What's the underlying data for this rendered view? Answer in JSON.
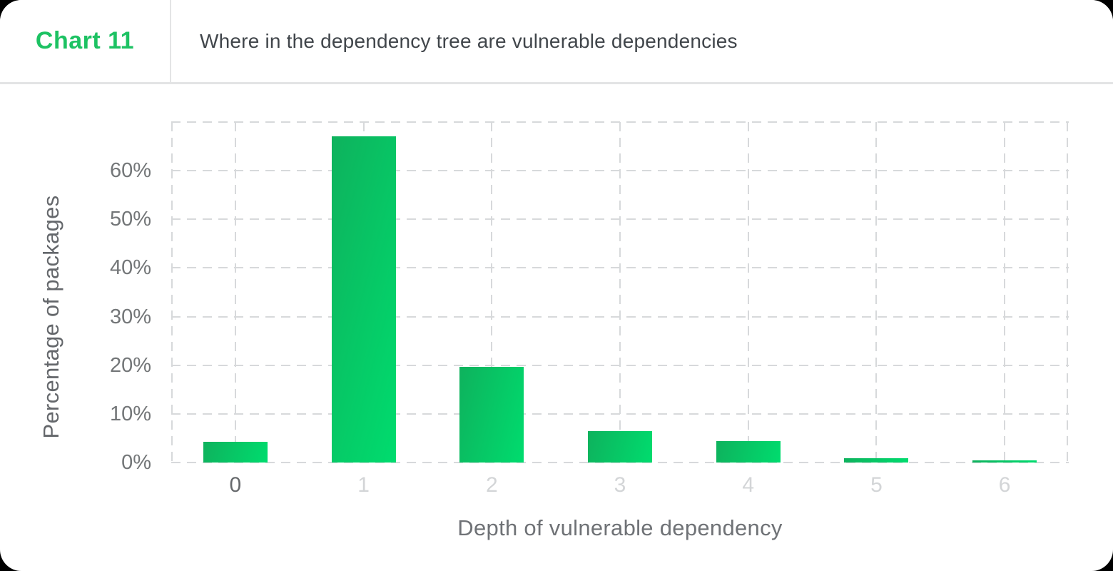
{
  "page": {
    "background_color": "#000000",
    "card_background_color": "#ffffff"
  },
  "header": {
    "chart_label": "Chart 11",
    "chart_label_color": "#1dc263",
    "title": "Where in the dependency tree are vulnerable dependencies",
    "title_color": "#41464b"
  },
  "chart_data": {
    "type": "bar",
    "title": "Where in the dependency tree are vulnerable dependencies",
    "categories": [
      "0",
      "1",
      "2",
      "3",
      "4",
      "5",
      "6"
    ],
    "values": [
      4.2,
      67,
      19.6,
      6.5,
      4.4,
      0.9,
      0.5
    ],
    "xlabel": "Depth of vulnerable dependency",
    "ylabel": "Percentage of packages",
    "ylim": [
      0,
      70
    ],
    "ytick_values": [
      0,
      10,
      20,
      30,
      40,
      50,
      60
    ],
    "ytick_labels": [
      "0%",
      "10%",
      "20%",
      "30%",
      "40%",
      "50%",
      "60%"
    ],
    "grid": "dashed horizontal lines every 10% up to 70%, dashed vertical lines at plot edges and at each category center",
    "legend": "none",
    "bar_gradient": [
      "#0eb25d",
      "#00dc6e"
    ],
    "gridline_color": "#d7d9db",
    "x_tick_color_first": "#66696c",
    "x_tick_color_rest": "#d3d5d7",
    "y_tick_color": "#737678"
  }
}
